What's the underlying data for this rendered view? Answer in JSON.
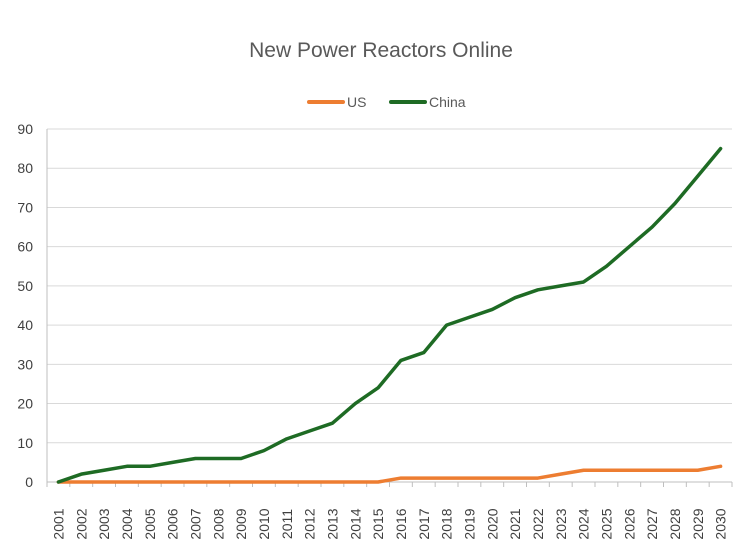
{
  "chart_data": {
    "type": "line",
    "title": "New Power Reactors Online",
    "xlabel": "",
    "ylabel": "",
    "ylim": [
      0,
      90
    ],
    "yticks": [
      0,
      10,
      20,
      30,
      40,
      50,
      60,
      70,
      80,
      90
    ],
    "grid": true,
    "legend": "top",
    "categories": [
      "2001",
      "2002",
      "2003",
      "2004",
      "2005",
      "2006",
      "2007",
      "2008",
      "2009",
      "2010",
      "2011",
      "2012",
      "2013",
      "2014",
      "2015",
      "2016",
      "2017",
      "2018",
      "2019",
      "2020",
      "2021",
      "2022",
      "2023",
      "2024",
      "2025",
      "2026",
      "2027",
      "2028",
      "2029",
      "2030"
    ],
    "series": [
      {
        "name": "US",
        "color": "#ed7d31",
        "values": [
          0,
          0,
          0,
          0,
          0,
          0,
          0,
          0,
          0,
          0,
          0,
          0,
          0,
          0,
          0,
          1,
          1,
          1,
          1,
          1,
          1,
          1,
          2,
          3,
          3,
          3,
          3,
          3,
          3,
          4
        ]
      },
      {
        "name": "China",
        "color": "#1e6b24",
        "values": [
          0,
          2,
          3,
          4,
          4,
          5,
          6,
          6,
          6,
          8,
          11,
          13,
          15,
          20,
          24,
          31,
          33,
          40,
          42,
          44,
          47,
          49,
          50,
          51,
          55,
          60,
          65,
          71,
          78,
          85
        ]
      }
    ]
  }
}
